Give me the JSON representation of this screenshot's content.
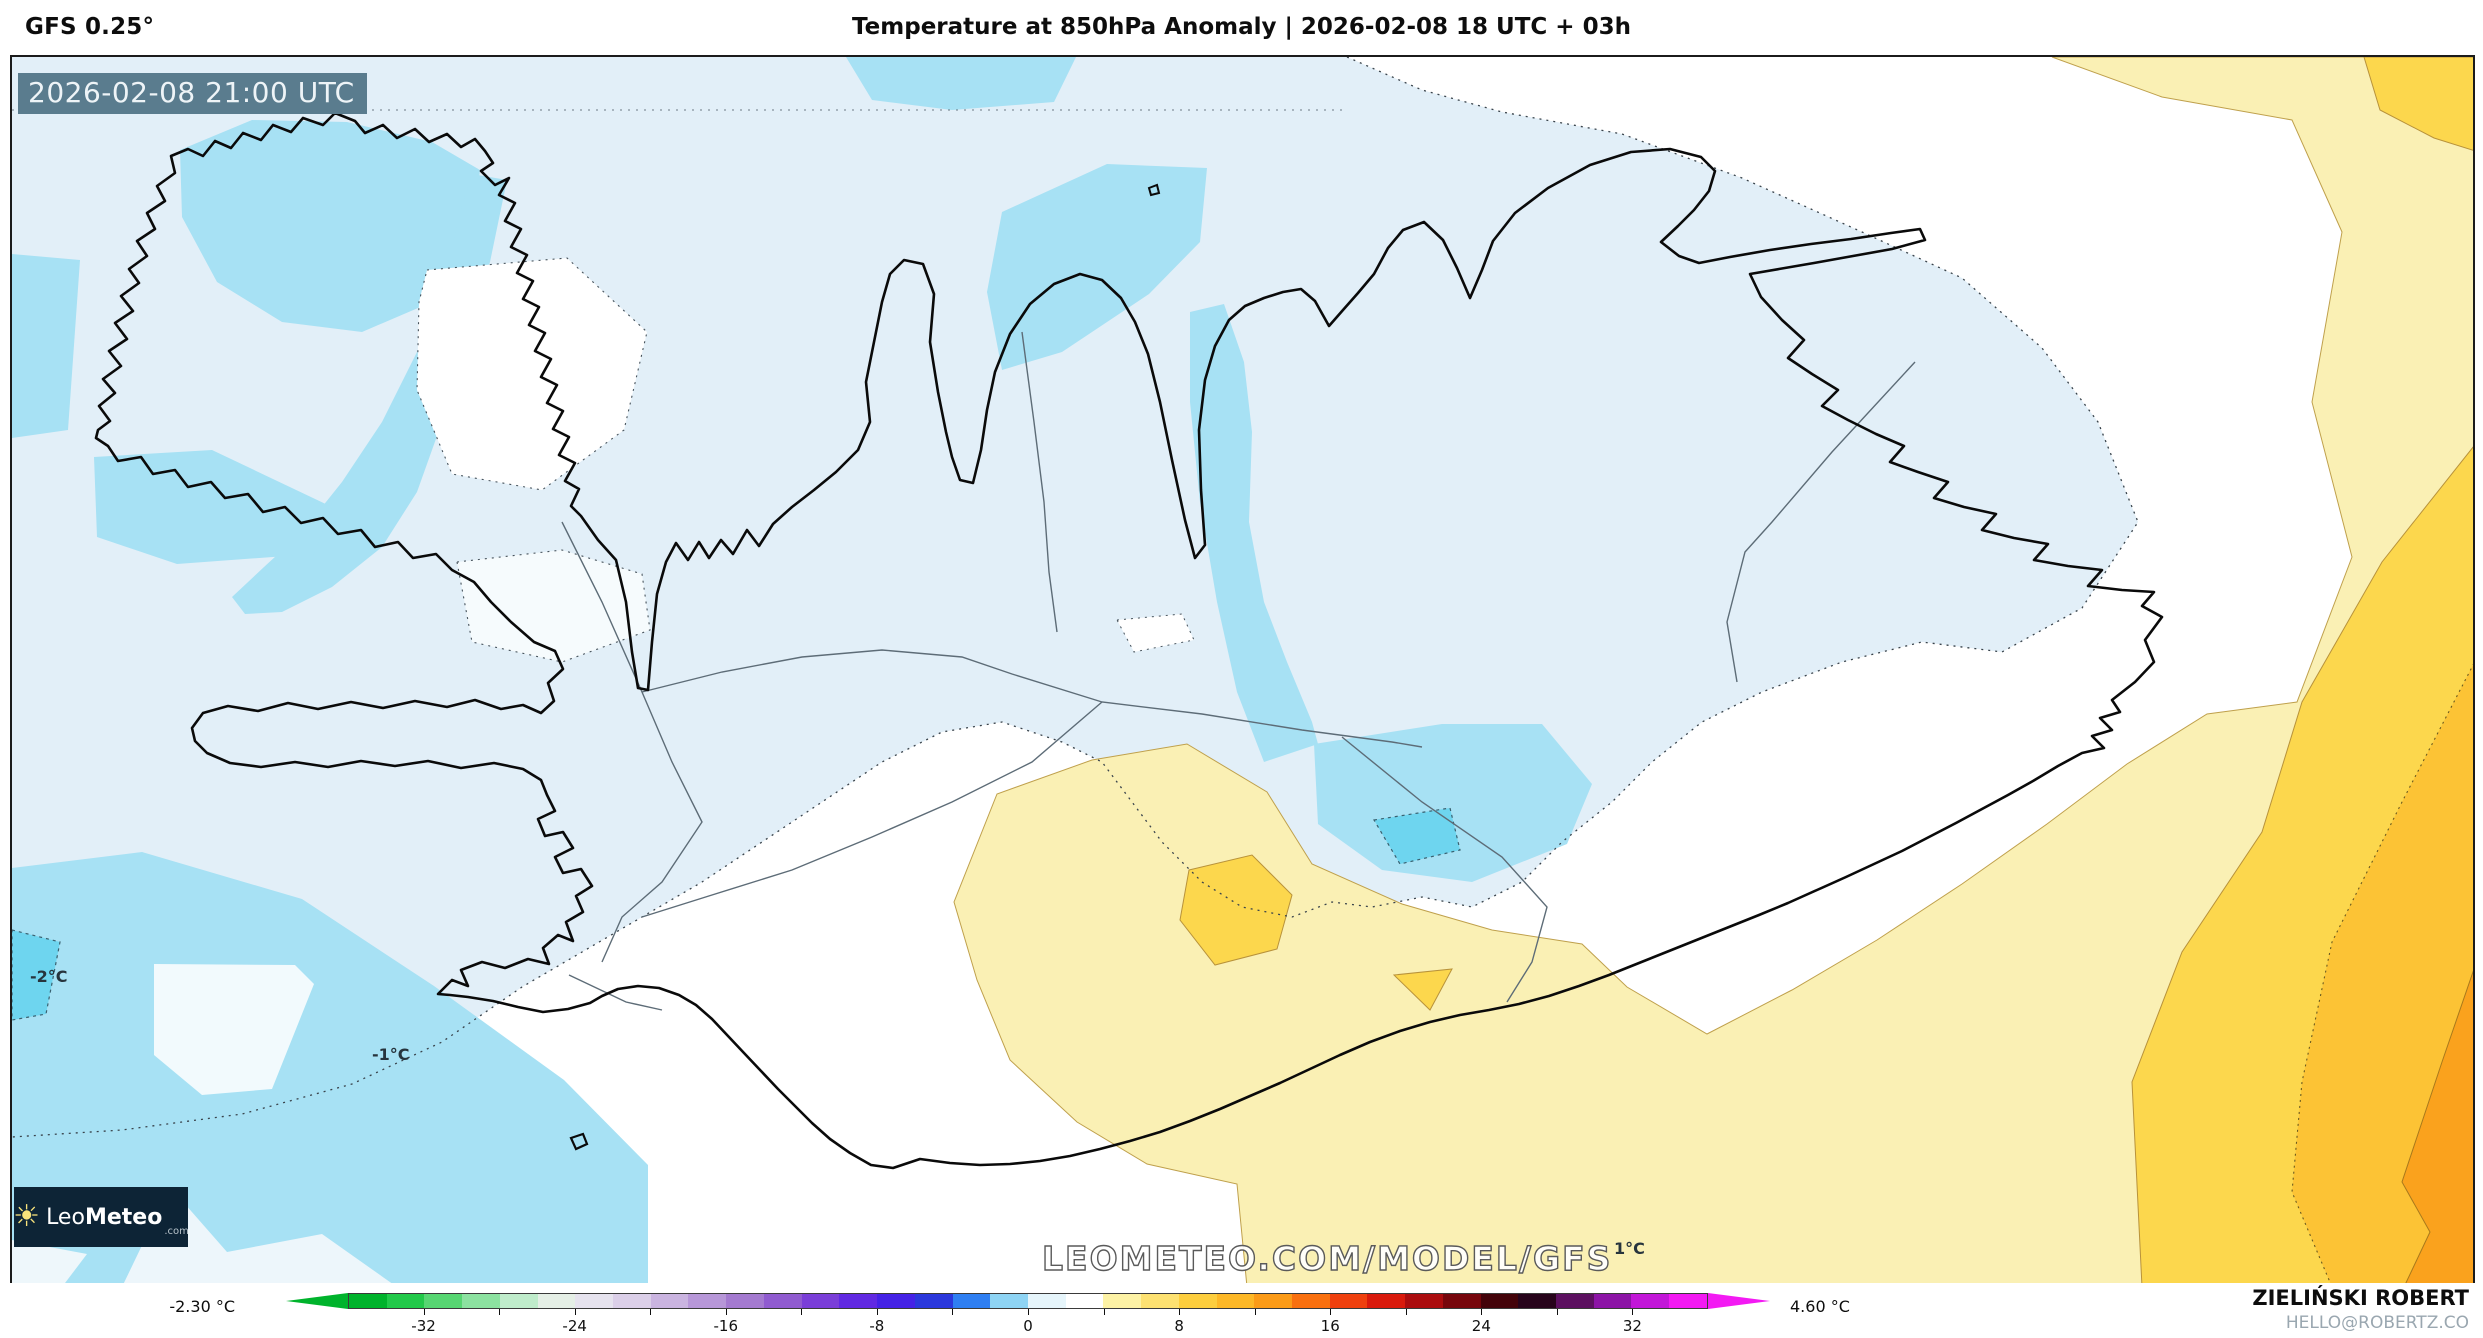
{
  "header": {
    "model": "GFS 0.25°",
    "title": "Temperature at 850hPa Anomaly | 2026-02-08 18 UTC + 03h"
  },
  "map": {
    "timestamp": "2026-02-08 21:00 UTC",
    "watermark": "LEOMETEO.COM/MODEL/GFS",
    "labels": {
      "neg2": "-2°C",
      "neg1": "-1°C",
      "pos1": "1°C"
    },
    "band_colors": {
      "pale_blue": "#e2eff8",
      "cyan": "#a7e1f4",
      "dark_cyan": "#6ed5ef",
      "white": "#ffffff",
      "pale_yellow": "#faf0b4",
      "bright_yellow": "#fcd74d",
      "golden": "#fcc335",
      "orange": "#faa21d"
    }
  },
  "logo": {
    "name_a": "Leo",
    "name_b": "Meteo",
    "tld": ".com",
    "sun_icon": "sun"
  },
  "colorbar": {
    "min_label": "-2.30 °C",
    "max_label": "4.60 °C",
    "range": [
      -36,
      36
    ],
    "minor_tick_step": 4,
    "label_step": 8,
    "tick_labels": [
      -32,
      -24,
      -16,
      -8,
      0,
      8,
      16,
      24,
      32
    ],
    "colors": [
      "#00b32c",
      "#22c94a",
      "#57d672",
      "#8ce2a0",
      "#bfeccb",
      "#e5efe6",
      "#e6e3ee",
      "#dbcfe8",
      "#cab4e0",
      "#b797d8",
      "#a47ad0",
      "#905bd0",
      "#7a3ed8",
      "#6129e2",
      "#4522e6",
      "#2b38dc",
      "#2f7ff2",
      "#8ed4f4",
      "#e6f5fb",
      "#ffffff",
      "#fdf2a5",
      "#fde171",
      "#fdce3e",
      "#fdb827",
      "#fb9b18",
      "#f9700f",
      "#ef400e",
      "#d91a0c",
      "#ab0c0e",
      "#77060c",
      "#44030a",
      "#27041b",
      "#5c1060",
      "#8c14a6",
      "#c217d8",
      "#f31af3"
    ]
  },
  "credit": {
    "name": "ZIELIŃSKI ROBERT",
    "email": "HELLO@ROBERTZ.CO"
  }
}
